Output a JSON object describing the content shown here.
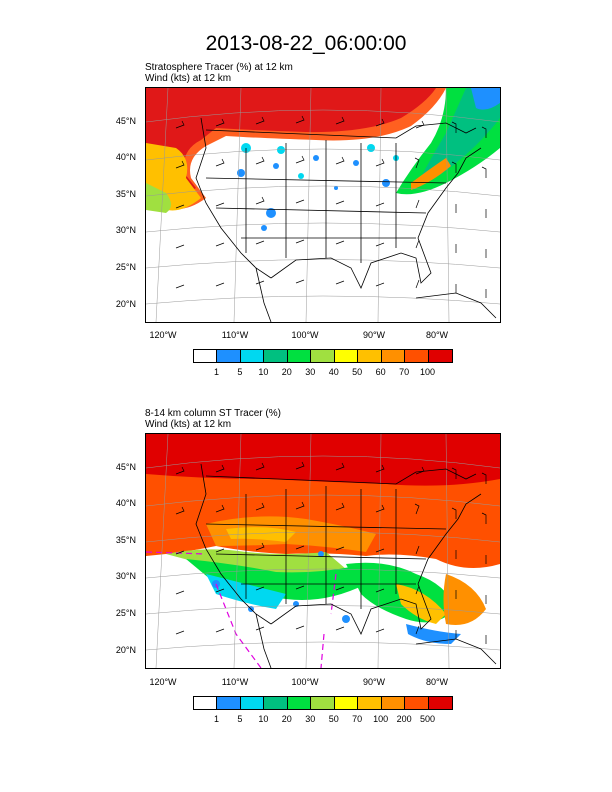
{
  "title": "2013-08-22_06:00:00",
  "panels": [
    {
      "line1": "Stratosphere Tracer   (%)     at   12 km",
      "line2": "Wind   (kts)     at   12 km",
      "lat_labels": [
        "45°N",
        "40°N",
        "35°N",
        "30°N",
        "25°N",
        "20°N"
      ],
      "lon_labels": [
        "120°W",
        "110°W",
        "100°W",
        "90°W",
        "80°W"
      ],
      "colorbar_labels": [
        "1",
        "5",
        "10",
        "20",
        "30",
        "40",
        "50",
        "60",
        "70",
        "100"
      ]
    },
    {
      "line1": "8-14 km column ST Tracer   (%)",
      "line2": "Wind   (kts)     at   12 km",
      "lat_labels": [
        "45°N",
        "40°N",
        "35°N",
        "30°N",
        "25°N",
        "20°N"
      ],
      "lon_labels": [
        "120°W",
        "110°W",
        "100°W",
        "90°W",
        "80°W"
      ],
      "colorbar_labels": [
        "1",
        "5",
        "10",
        "20",
        "30",
        "50",
        "70",
        "100",
        "200",
        "500"
      ]
    }
  ],
  "colorbar_colors": [
    "#ffffff",
    "#1e90ff",
    "#00d8f0",
    "#00c080",
    "#00e040",
    "#a0e040",
    "#ffff00",
    "#ffc000",
    "#ff9000",
    "#ff5000",
    "#e00000"
  ]
}
